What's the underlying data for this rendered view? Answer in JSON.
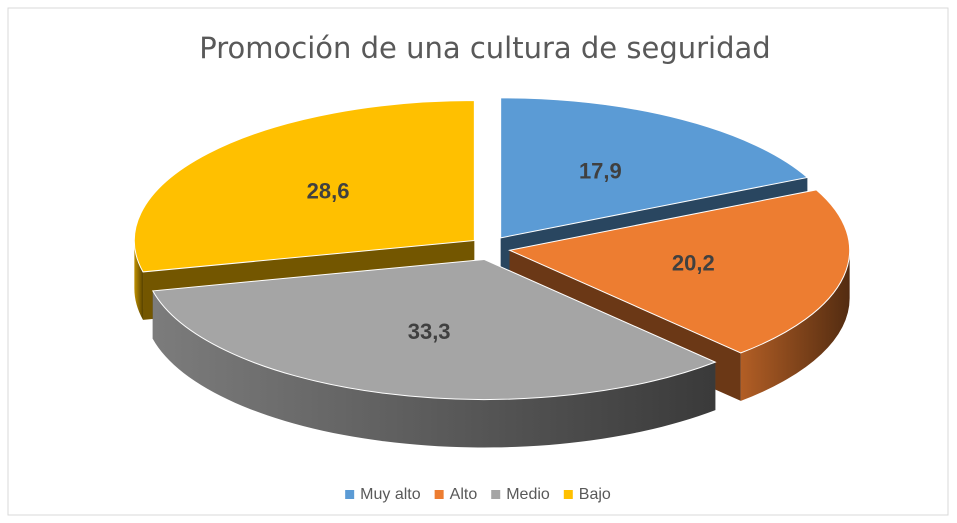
{
  "chart_data": {
    "type": "pie",
    "title": "Promoción de una cultura de seguridad",
    "categories": [
      "Muy alto",
      "Alto",
      "Medio",
      "Bajo"
    ],
    "values": [
      17.9,
      20.2,
      33.3,
      28.6
    ],
    "value_labels": [
      "17,9",
      "20,2",
      "33,3",
      "28,6"
    ],
    "colors": [
      "#5b9bd5",
      "#ed7d31",
      "#a5a5a5",
      "#ffc000"
    ],
    "legend": "bottom"
  }
}
